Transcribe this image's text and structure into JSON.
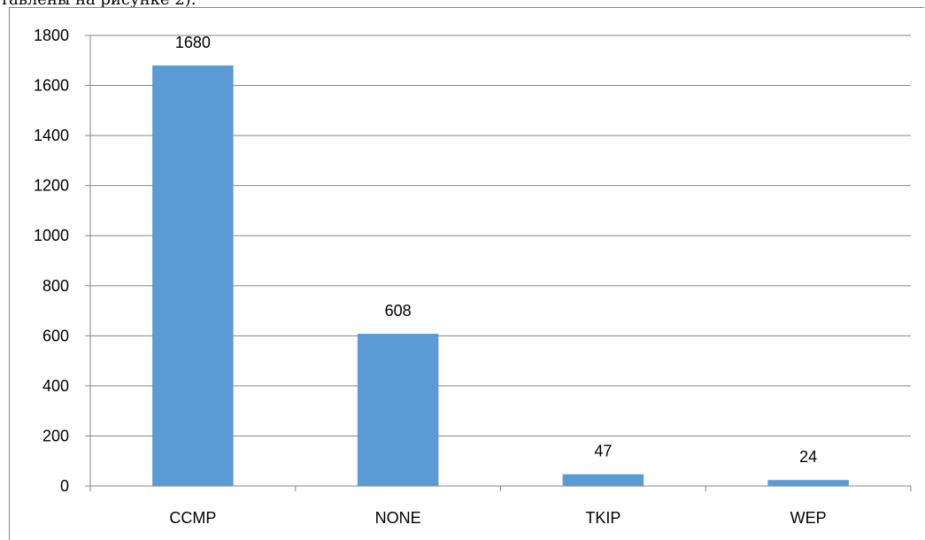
{
  "page": {
    "top_caption": "тавлены на рисунке 2)."
  },
  "colors": {
    "bar": "#5b9bd5",
    "grid": "#868686",
    "axis": "#868686",
    "text": "#000000"
  },
  "chart_data": {
    "type": "bar",
    "title": "",
    "xlabel": "",
    "ylabel": "",
    "categories": [
      "CCMP",
      "NONE",
      "TKIP",
      "WEP"
    ],
    "values": [
      1680,
      608,
      47,
      24
    ],
    "data_labels": [
      "1680",
      "608",
      "47",
      "24"
    ],
    "ylim": [
      0,
      1800
    ],
    "yticks": [
      0,
      200,
      400,
      600,
      800,
      1000,
      1200,
      1400,
      1600,
      1800
    ],
    "grid": true,
    "legend": "none"
  }
}
